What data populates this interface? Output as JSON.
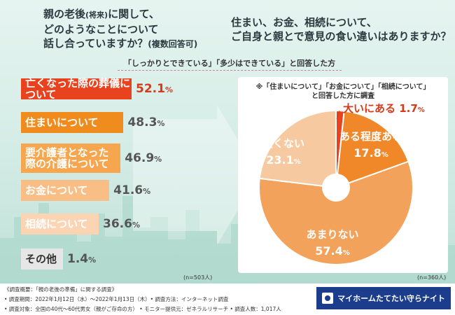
{
  "left_question": {
    "line1": "親の老後",
    "paren": "(将来)",
    "line1b": "に関して、",
    "line2": "どのようなことについて",
    "line3": "話し合っていますか？",
    "note": "(複数回答可)"
  },
  "right_question": {
    "line1": "住まい、お金、相続について、",
    "line2": "ご自身と親とで意見の食い違いはありますか？"
  },
  "subhead": "「しっかりとできている」「多少はできている」と回答した方",
  "chart_data": [
    {
      "type": "bar",
      "categories": [
        "亡くなった際の葬儀について",
        "住まいについて",
        "要介護者となった際の介護について",
        "お金について",
        "相続について",
        "その他"
      ],
      "values": [
        52.1,
        48.3,
        46.9,
        41.6,
        36.6,
        1.4
      ],
      "unit": "%",
      "n_label": "(n=503人)",
      "colors": [
        "#e8421e",
        "#f08c1e",
        "#f5a64e",
        "#f8be86",
        "#fbd4b4",
        "#e6e6e6"
      ]
    },
    {
      "type": "pie",
      "note_line1": "※「住まいについて」「お金について」「相続について」",
      "note_line2": "と回答した方に調査",
      "labels": [
        "大いにある",
        "ある程度ある",
        "あまりない",
        "全くない"
      ],
      "values": [
        1.7,
        17.8,
        57.4,
        23.1
      ],
      "unit": "%",
      "n_label": "(n=360人)",
      "colors": [
        "#e8421e",
        "#f0882a",
        "#f2a25a",
        "#f7c9a0"
      ]
    }
  ],
  "footer": {
    "line1": "《調査概要：「親の老後の準備」に関する調査》",
    "line2": "• 調査期間：2022年1月12日（水）～2022年1月13日（木）• 調査方法：インターネット調査",
    "line3": "• 調査対象：全国の40代～60代男女（親がご存命の方） • モニター提供元：ゼネラルリサーチ • 調査人数：1,017人",
    "logo_text": "マイホームたてたい守らナイト"
  }
}
